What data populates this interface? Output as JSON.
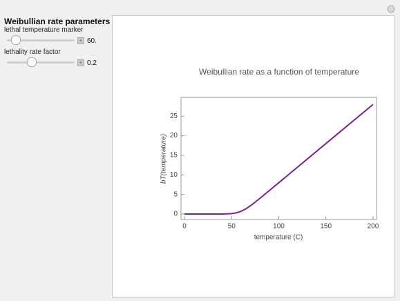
{
  "panel": {
    "title": "Weibullian rate parameters",
    "controls": [
      {
        "label": "lethal temperature marker",
        "value": "60."
      },
      {
        "label": "lethality rate factor",
        "value": "0.2"
      }
    ]
  },
  "chart_data": {
    "type": "line",
    "title": "Weibullian rate as a function of temperature",
    "x_label": "temperature (C)",
    "y_label": "bT(temperature)",
    "x": [
      0,
      10,
      20,
      30,
      40,
      45,
      50,
      55,
      60,
      65,
      70,
      75,
      80,
      90,
      100,
      120,
      150,
      200
    ],
    "series": [
      {
        "color": "#7e1e9c",
        "values": [
          0,
          0,
          0.0003,
          0.0025,
          0.018,
          0.049,
          0.127,
          0.313,
          0.693,
          1.313,
          2.127,
          3.049,
          4.018,
          6.0025,
          8.0003,
          12,
          18,
          28
        ]
      }
    ],
    "xlim": [
      -3.7,
      203.7
    ],
    "ylim": [
      -1.4,
      29.8
    ],
    "xticks": [
      0,
      50,
      100,
      150,
      200
    ],
    "yticks": [
      0,
      5,
      10,
      15,
      20,
      25
    ]
  }
}
